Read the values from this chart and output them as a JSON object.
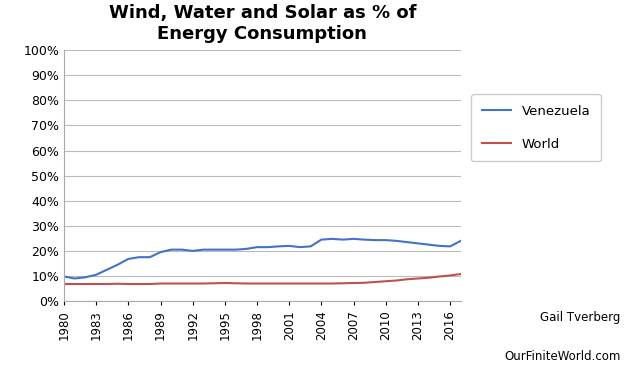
{
  "title": "Wind, Water and Solar as % of\nEnergy Consumption",
  "title_fontsize": 13,
  "title_fontweight": "bold",
  "years": [
    1980,
    1981,
    1982,
    1983,
    1984,
    1985,
    1986,
    1987,
    1988,
    1989,
    1990,
    1991,
    1992,
    1993,
    1994,
    1995,
    1996,
    1997,
    1998,
    1999,
    2000,
    2001,
    2002,
    2003,
    2004,
    2005,
    2006,
    2007,
    2008,
    2009,
    2010,
    2011,
    2012,
    2013,
    2014,
    2015,
    2016,
    2017
  ],
  "venezuela": [
    0.098,
    0.09,
    0.095,
    0.105,
    0.125,
    0.145,
    0.168,
    0.175,
    0.175,
    0.195,
    0.205,
    0.205,
    0.2,
    0.205,
    0.205,
    0.205,
    0.205,
    0.208,
    0.215,
    0.215,
    0.218,
    0.22,
    0.215,
    0.218,
    0.245,
    0.248,
    0.245,
    0.248,
    0.245,
    0.243,
    0.243,
    0.24,
    0.235,
    0.23,
    0.225,
    0.22,
    0.218,
    0.24
  ],
  "world": [
    0.068,
    0.068,
    0.068,
    0.068,
    0.068,
    0.069,
    0.068,
    0.068,
    0.068,
    0.07,
    0.07,
    0.07,
    0.07,
    0.07,
    0.071,
    0.072,
    0.071,
    0.07,
    0.07,
    0.07,
    0.07,
    0.07,
    0.07,
    0.07,
    0.07,
    0.07,
    0.071,
    0.072,
    0.073,
    0.076,
    0.079,
    0.082,
    0.087,
    0.09,
    0.093,
    0.098,
    0.102,
    0.108
  ],
  "venezuela_color": "#4472C4",
  "world_color": "#C0504D",
  "ylim": [
    0,
    1.0
  ],
  "yticks": [
    0.0,
    0.1,
    0.2,
    0.3,
    0.4,
    0.5,
    0.6,
    0.7,
    0.8,
    0.9,
    1.0
  ],
  "xticks": [
    1980,
    1983,
    1986,
    1989,
    1992,
    1995,
    1998,
    2001,
    2004,
    2007,
    2010,
    2013,
    2016
  ],
  "background_color": "#ffffff",
  "grid_color": "#bbbbbb",
  "legend_venezuela": "Venezuela",
  "legend_world": "World",
  "credit_line1": "Gail Tverberg",
  "credit_line2": "OurFiniteWorld.com"
}
